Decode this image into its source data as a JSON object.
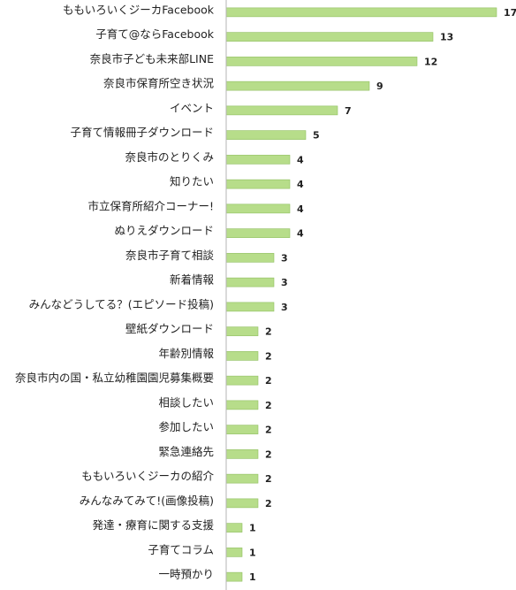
{
  "chart_data": {
    "type": "bar",
    "orientation": "horizontal",
    "categories": [
      "ももいろいくジーカFacebook",
      "子育て@ならFacebook",
      "奈良市子ども未来部LINE",
      "奈良市保育所空き状況",
      "イベント",
      "子育て情報冊子ダウンロード",
      "奈良市のとりくみ",
      "知りたい",
      "市立保育所紹介コーナー!",
      "ぬりえダウンロード",
      "奈良市子育て相談",
      "新着情報",
      "みんなどうしてる？(エピソード投稿)",
      "壁紙ダウンロード",
      "年齢別情報",
      "奈良市内の国・私立幼稚園園児募集概要",
      "相談したい",
      "参加したい",
      "緊急連絡先",
      "ももいろいくジーカの紹介",
      "みんなみてみて!(画像投稿)",
      "発達・療育に関する支援",
      "子育てコラム",
      "一時預かり"
    ],
    "values": [
      17,
      13,
      12,
      9,
      7,
      5,
      4,
      4,
      4,
      4,
      3,
      3,
      3,
      2,
      2,
      2,
      2,
      2,
      2,
      2,
      2,
      1,
      1,
      1
    ],
    "xlim": [
      0,
      17
    ],
    "grid": false,
    "legend": "none",
    "data_labels": true,
    "bar_color": "#b7dd8a",
    "bar_edge_color": "#8fbf5f"
  }
}
